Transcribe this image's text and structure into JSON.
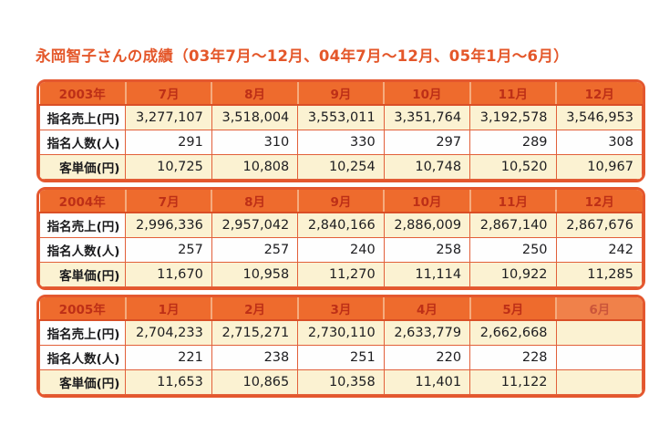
{
  "title": "永岡智子さんの成績（03年7月～12月、04年7月～12月、05年1月～6月）",
  "colors": {
    "header_bg": "#ee6b2d",
    "header_text": "#bd2f17",
    "grid_border": "#e2603a",
    "outer_border": "#e4572e",
    "row_cream": "#fbf2d2",
    "row_white": "#fefefe",
    "title_text": "#e4572a"
  },
  "row_labels": {
    "sales": "指名売上(円)",
    "count": "指名人数(人)",
    "price": "客単価(円)"
  },
  "tables": [
    {
      "year": "2003年",
      "months": [
        "7月",
        "8月",
        "9月",
        "10月",
        "11月",
        "12月"
      ],
      "rows": [
        {
          "label": "指名売上(円)",
          "values": [
            "3,277,107",
            "3,518,004",
            "3,553,011",
            "3,351,764",
            "3,192,578",
            "3,546,953"
          ]
        },
        {
          "label": "指名人数(人)",
          "values": [
            "291",
            "310",
            "330",
            "297",
            "289",
            "308"
          ]
        },
        {
          "label": "客単価(円)",
          "values": [
            "10,725",
            "10,808",
            "10,254",
            "10,748",
            "10,520",
            "10,967"
          ]
        }
      ]
    },
    {
      "year": "2004年",
      "months": [
        "7月",
        "8月",
        "9月",
        "10月",
        "11月",
        "12月"
      ],
      "rows": [
        {
          "label": "指名売上(円)",
          "values": [
            "2,996,336",
            "2,957,042",
            "2,840,166",
            "2,886,009",
            "2,867,140",
            "2,867,676"
          ]
        },
        {
          "label": "指名人数(人)",
          "values": [
            "257",
            "257",
            "240",
            "258",
            "250",
            "242"
          ]
        },
        {
          "label": "客単価(円)",
          "values": [
            "11,670",
            "10,958",
            "11,270",
            "11,114",
            "10,922",
            "11,285"
          ]
        }
      ]
    },
    {
      "year": "2005年",
      "months": [
        "1月",
        "2月",
        "3月",
        "4月",
        "5月",
        "6月"
      ],
      "rows": [
        {
          "label": "指名売上(円)",
          "values": [
            "2,704,233",
            "2,715,271",
            "2,730,110",
            "2,633,779",
            "2,662,668",
            ""
          ]
        },
        {
          "label": "指名人数(人)",
          "values": [
            "221",
            "238",
            "251",
            "220",
            "228",
            ""
          ]
        },
        {
          "label": "客単価(円)",
          "values": [
            "11,653",
            "10,865",
            "10,358",
            "11,401",
            "11,122",
            ""
          ]
        }
      ]
    }
  ]
}
